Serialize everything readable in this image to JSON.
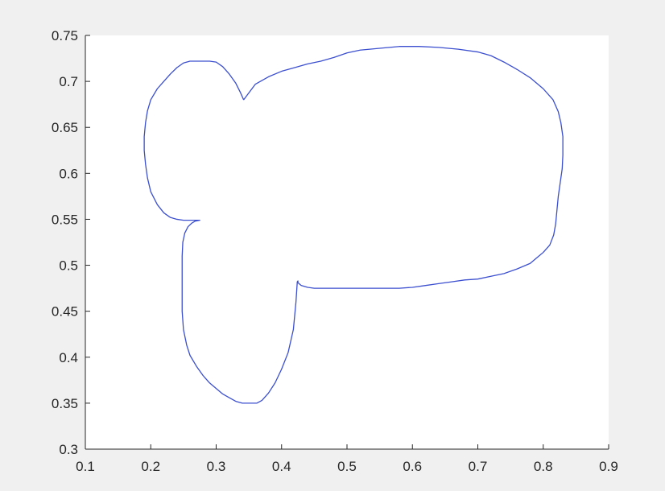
{
  "chart_data": {
    "type": "line",
    "title": "",
    "xlabel": "",
    "ylabel": "",
    "xlim": [
      0.1,
      0.9
    ],
    "ylim": [
      0.3,
      0.75
    ],
    "xticks": [
      0.1,
      0.2,
      0.3,
      0.4,
      0.5,
      0.6,
      0.7,
      0.8,
      0.9
    ],
    "yticks": [
      0.3,
      0.35,
      0.4,
      0.45,
      0.5,
      0.55,
      0.6,
      0.65,
      0.7,
      0.75
    ],
    "xtick_labels": [
      "0.1",
      "0.2",
      "0.3",
      "0.4",
      "0.5",
      "0.6",
      "0.7",
      "0.8",
      "0.9"
    ],
    "ytick_labels": [
      "0.3",
      "0.35",
      "0.4",
      "0.45",
      "0.5",
      "0.55",
      "0.6",
      "0.65",
      "0.7",
      "0.75"
    ],
    "grid": false,
    "legend": "none",
    "colors": {
      "line": "#3b4fcf",
      "axes_bg": "#ffffff",
      "figure_bg": "#f0f0f0",
      "axis": "#262626"
    },
    "series": [
      {
        "x": [
          0.342,
          0.36,
          0.38,
          0.4,
          0.42,
          0.44,
          0.46,
          0.48,
          0.5,
          0.52,
          0.55,
          0.58,
          0.61,
          0.64,
          0.67,
          0.7,
          0.72,
          0.74,
          0.76,
          0.78,
          0.8,
          0.815,
          0.823,
          0.827,
          0.83,
          0.83,
          0.829,
          0.826,
          0.823,
          0.821,
          0.819,
          0.816,
          0.81,
          0.8,
          0.79,
          0.78,
          0.76,
          0.74,
          0.72,
          0.7,
          0.68,
          0.66,
          0.64,
          0.62,
          0.6,
          0.58,
          0.56,
          0.54,
          0.52,
          0.5,
          0.48,
          0.46,
          0.45,
          0.44,
          0.43,
          0.425,
          0.425,
          0.424,
          0.422,
          0.418,
          0.41,
          0.4,
          0.39,
          0.38,
          0.37,
          0.362,
          0.35,
          0.34,
          0.33,
          0.32,
          0.31,
          0.3,
          0.29,
          0.28,
          0.27,
          0.26,
          0.255,
          0.25,
          0.248,
          0.248,
          0.248,
          0.249,
          0.252,
          0.257,
          0.263,
          0.268,
          0.275,
          0.262,
          0.25,
          0.24,
          0.23,
          0.22,
          0.21,
          0.2,
          0.195,
          0.192,
          0.19,
          0.19,
          0.192,
          0.195,
          0.2,
          0.21,
          0.22,
          0.23,
          0.24,
          0.25,
          0.26,
          0.27,
          0.28,
          0.29,
          0.3,
          0.31,
          0.32,
          0.33,
          0.337,
          0.342
        ],
        "y": [
          0.68,
          0.697,
          0.705,
          0.711,
          0.715,
          0.719,
          0.722,
          0.726,
          0.731,
          0.734,
          0.736,
          0.738,
          0.738,
          0.737,
          0.735,
          0.732,
          0.728,
          0.721,
          0.713,
          0.704,
          0.692,
          0.68,
          0.667,
          0.655,
          0.64,
          0.62,
          0.605,
          0.59,
          0.575,
          0.56,
          0.545,
          0.533,
          0.522,
          0.514,
          0.508,
          0.502,
          0.496,
          0.491,
          0.488,
          0.485,
          0.484,
          0.482,
          0.48,
          0.478,
          0.476,
          0.475,
          0.475,
          0.475,
          0.475,
          0.475,
          0.475,
          0.475,
          0.475,
          0.476,
          0.478,
          0.481,
          0.483,
          0.482,
          0.46,
          0.43,
          0.405,
          0.387,
          0.372,
          0.361,
          0.353,
          0.35,
          0.35,
          0.35,
          0.352,
          0.356,
          0.36,
          0.366,
          0.372,
          0.38,
          0.39,
          0.402,
          0.413,
          0.43,
          0.45,
          0.48,
          0.51,
          0.525,
          0.535,
          0.542,
          0.546,
          0.548,
          0.549,
          0.549,
          0.549,
          0.55,
          0.552,
          0.557,
          0.566,
          0.58,
          0.595,
          0.61,
          0.625,
          0.64,
          0.655,
          0.668,
          0.68,
          0.692,
          0.7,
          0.708,
          0.715,
          0.72,
          0.722,
          0.722,
          0.722,
          0.722,
          0.721,
          0.716,
          0.708,
          0.698,
          0.688,
          0.68
        ]
      }
    ]
  }
}
